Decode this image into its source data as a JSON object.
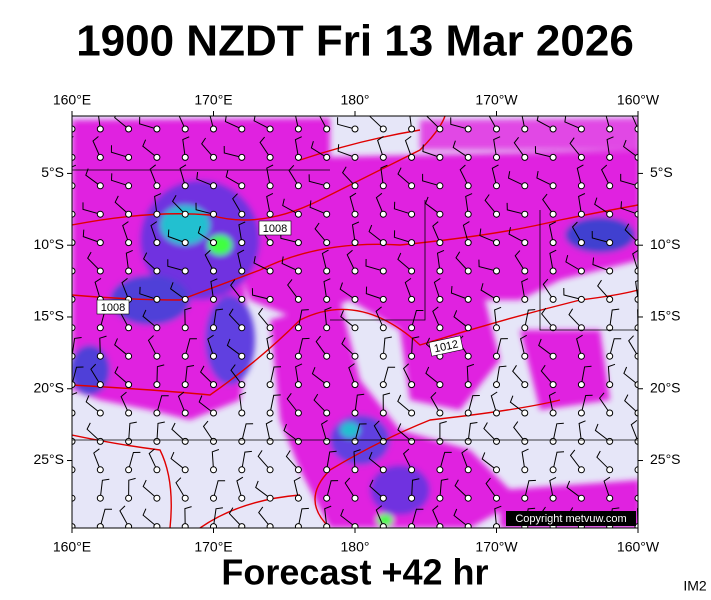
{
  "title": "1900 NZDT Fri 13 Mar 2026",
  "subtitle": "Forecast +42 hr",
  "corner_label": "IM2",
  "copyright": "Copyright metvuw.com",
  "map": {
    "lonlim": [
      160,
      200
    ],
    "latlim": [
      -1,
      -29.7
    ],
    "lon_ticks": [
      {
        "value": 160,
        "label": "160°E"
      },
      {
        "value": 170,
        "label": "170°E"
      },
      {
        "value": 180,
        "label": "180°"
      },
      {
        "value": 190,
        "label": "170°W"
      },
      {
        "value": 200,
        "label": "160°W"
      }
    ],
    "lat_ticks": [
      {
        "value": -5,
        "label": "5°S"
      },
      {
        "value": -10,
        "label": "10°S"
      },
      {
        "value": -15,
        "label": "15°S"
      },
      {
        "value": -20,
        "label": "20°S"
      },
      {
        "value": -25,
        "label": "25°S"
      }
    ],
    "isobar_labels": [
      "1008",
      "1008",
      "1012"
    ]
  }
}
